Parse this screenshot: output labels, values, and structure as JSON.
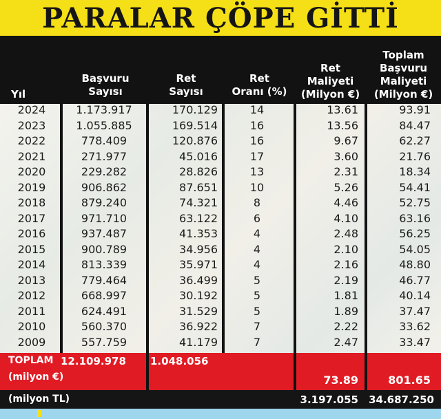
{
  "title": "PARALAR ÇÖPE GİTTİ",
  "headers": {
    "yil": [
      "Yıl"
    ],
    "basvuru": [
      "Başvuru",
      "Sayısı"
    ],
    "ret": [
      "Ret",
      "Sayısı"
    ],
    "oran": [
      "Ret",
      "Oranı (%)"
    ],
    "maliyet": [
      "Ret",
      "Maliyeti",
      "(Milyon €)"
    ],
    "toplam": [
      "Toplam",
      "Başvuru",
      "Maliyeti",
      "(Milyon €)"
    ]
  },
  "rows": [
    {
      "yil": "2024",
      "basvuru": "1.173.917",
      "ret": "170.129",
      "oran": "14",
      "maliyet": "13.61",
      "toplam": "93.91"
    },
    {
      "yil": "2023",
      "basvuru": "1.055.885",
      "ret": "169.514",
      "oran": "16",
      "maliyet": "13.56",
      "toplam": "84.47"
    },
    {
      "yil": "2022",
      "basvuru": "778.409",
      "ret": "120.876",
      "oran": "16",
      "maliyet": "9.67",
      "toplam": "62.27"
    },
    {
      "yil": "2021",
      "basvuru": "271.977",
      "ret": "45.016",
      "oran": "17",
      "maliyet": "3.60",
      "toplam": "21.76"
    },
    {
      "yil": "2020",
      "basvuru": "229.282",
      "ret": "28.826",
      "oran": "13",
      "maliyet": "2.31",
      "toplam": "18.34"
    },
    {
      "yil": "2019",
      "basvuru": "906.862",
      "ret": "87.651",
      "oran": "10",
      "maliyet": "5.26",
      "toplam": "54.41"
    },
    {
      "yil": "2018",
      "basvuru": "879.240",
      "ret": "74.321",
      "oran": "8",
      "maliyet": "4.46",
      "toplam": "52.75"
    },
    {
      "yil": "2017",
      "basvuru": "971.710",
      "ret": "63.122",
      "oran": "6",
      "maliyet": "4.10",
      "toplam": "63.16"
    },
    {
      "yil": "2016",
      "basvuru": "937.487",
      "ret": "41.353",
      "oran": "4",
      "maliyet": "2.48",
      "toplam": "56.25"
    },
    {
      "yil": "2015",
      "basvuru": "900.789",
      "ret": "34.956",
      "oran": "4",
      "maliyet": "2.10",
      "toplam": "54.05"
    },
    {
      "yil": "2014",
      "basvuru": "813.339",
      "ret": "35.971",
      "oran": "4",
      "maliyet": "2.16",
      "toplam": "48.80"
    },
    {
      "yil": "2013",
      "basvuru": "779.464",
      "ret": "36.499",
      "oran": "5",
      "maliyet": "2.19",
      "toplam": "46.77"
    },
    {
      "yil": "2012",
      "basvuru": "668.997",
      "ret": "30.192",
      "oran": "5",
      "maliyet": "1.81",
      "toplam": "40.14"
    },
    {
      "yil": "2011",
      "basvuru": "624.491",
      "ret": "31.529",
      "oran": "5",
      "maliyet": "1.89",
      "toplam": "37.47"
    },
    {
      "yil": "2010",
      "basvuru": "560.370",
      "ret": "36.922",
      "oran": "7",
      "maliyet": "2.22",
      "toplam": "33.62"
    },
    {
      "yil": "2009",
      "basvuru": "557.759",
      "ret": "41.179",
      "oran": "7",
      "maliyet": "2.47",
      "toplam": "33.47"
    }
  ],
  "totals": {
    "label": "TOPLAM",
    "basvuru": "12.109.978",
    "ret": "1.048.056",
    "unit_eur": "(milyon €)",
    "maliyet_eur": "73.89",
    "toplam_eur": "801.65",
    "unit_tl": "(milyon TL)",
    "maliyet_tl": "3.197.055",
    "toplam_tl": "34.687.250"
  },
  "colors": {
    "title_bg": "#f5df16",
    "header_bg": "#121212",
    "total_bg": "#e01b24",
    "tl_row_bg": "#151515"
  }
}
